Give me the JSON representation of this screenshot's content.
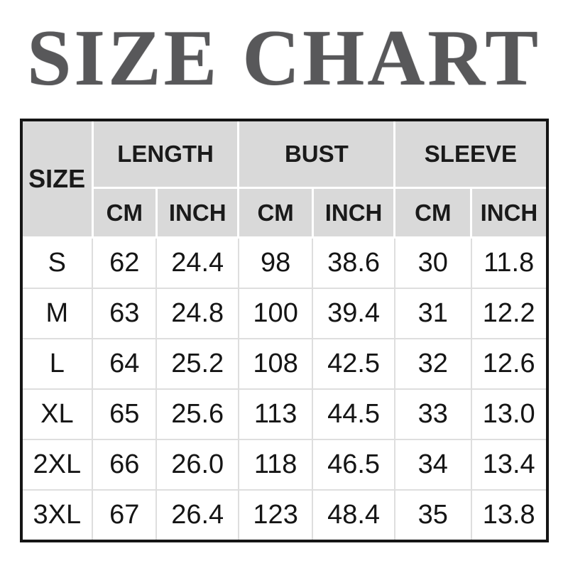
{
  "title": "SIZE CHART",
  "colors": {
    "title_text": "#58585a",
    "header_bg": "#d9d9d9",
    "table_border": "#151515",
    "grid_line": "#dedede",
    "body_text": "#151515"
  },
  "table": {
    "size_header": "SIZE",
    "groups": [
      {
        "label": "LENGTH"
      },
      {
        "label": "BUST"
      },
      {
        "label": "SLEEVE"
      }
    ],
    "unit_headers": [
      "CM",
      "INCH",
      "CM",
      "INCH",
      "CM",
      "INCH"
    ],
    "rows": [
      {
        "size": "S",
        "values": [
          "62",
          "24.4",
          "98",
          "38.6",
          "30",
          "11.8"
        ]
      },
      {
        "size": "M",
        "values": [
          "63",
          "24.8",
          "100",
          "39.4",
          "31",
          "12.2"
        ]
      },
      {
        "size": "L",
        "values": [
          "64",
          "25.2",
          "108",
          "42.5",
          "32",
          "12.6"
        ]
      },
      {
        "size": "XL",
        "values": [
          "65",
          "25.6",
          "113",
          "44.5",
          "33",
          "13.0"
        ]
      },
      {
        "size": "2XL",
        "values": [
          "66",
          "26.0",
          "118",
          "46.5",
          "34",
          "13.4"
        ]
      },
      {
        "size": "3XL",
        "values": [
          "67",
          "26.4",
          "123",
          "48.4",
          "35",
          "13.8"
        ]
      }
    ]
  },
  "chart_data": {
    "type": "table",
    "title": "SIZE CHART",
    "columns": [
      "SIZE",
      "LENGTH CM",
      "LENGTH INCH",
      "BUST CM",
      "BUST INCH",
      "SLEEVE CM",
      "SLEEVE INCH"
    ],
    "rows": [
      [
        "S",
        62,
        24.4,
        98,
        38.6,
        30,
        11.8
      ],
      [
        "M",
        63,
        24.8,
        100,
        39.4,
        31,
        12.2
      ],
      [
        "L",
        64,
        25.2,
        108,
        42.5,
        32,
        12.6
      ],
      [
        "XL",
        65,
        25.6,
        113,
        44.5,
        33,
        13.0
      ],
      [
        "2XL",
        66,
        26.0,
        118,
        46.5,
        34,
        13.4
      ],
      [
        "3XL",
        67,
        26.4,
        123,
        48.4,
        35,
        13.8
      ]
    ]
  }
}
